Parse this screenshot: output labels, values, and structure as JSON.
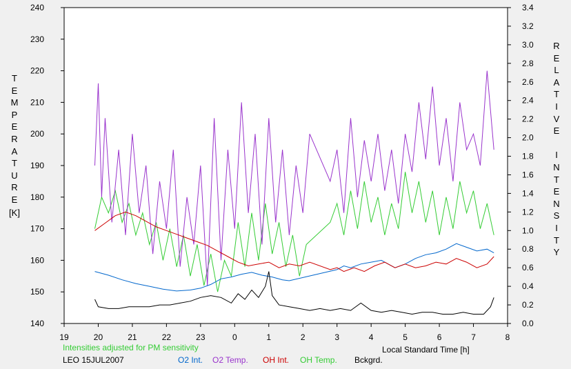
{
  "chart_data": {
    "type": "line",
    "xlabel": "Local Standard Time [h]",
    "ylabel_left": "TEMPERATURE",
    "ylabel_left_unit": "[K]",
    "ylabel_right": "RELATIVE INTENSITY",
    "x_ticks": [
      "19",
      "20",
      "21",
      "22",
      "23",
      "0",
      "1",
      "2",
      "3",
      "4",
      "5",
      "6",
      "7",
      "8"
    ],
    "x_range": [
      19,
      32
    ],
    "y_left_range": [
      140,
      240
    ],
    "y_left_ticks": [
      "140",
      "150",
      "160",
      "170",
      "180",
      "190",
      "200",
      "210",
      "220",
      "230",
      "240"
    ],
    "y_right_range": [
      0.0,
      3.4
    ],
    "y_right_ticks": [
      "0.0",
      "0.2",
      "0.4",
      "0.6",
      "0.8",
      "1.0",
      "1.2",
      "1.4",
      "1.6",
      "1.8",
      "2.0",
      "2.2",
      "2.4",
      "2.6",
      "2.8",
      "3.0",
      "3.2",
      "3.4"
    ],
    "note": "Intensities adjusted for PM sensitivity",
    "station": "LEO 15JUL2007",
    "series": [
      {
        "name": "O2 Int.",
        "color": "#0066cc",
        "axis": "right",
        "x": [
          19.9,
          20.3,
          20.7,
          21.1,
          21.5,
          21.9,
          22.3,
          22.7,
          23.0,
          23.3,
          23.6,
          23.9,
          24.2,
          24.5,
          24.8,
          25.1,
          25.4,
          25.6,
          27.0,
          27.2,
          27.4,
          27.7,
          28.0,
          28.3,
          28.5,
          28.7,
          29.0,
          29.3,
          29.6,
          29.9,
          30.2,
          30.5,
          30.8,
          31.1,
          31.4,
          31.6
        ],
        "y": [
          0.56,
          0.52,
          0.47,
          0.43,
          0.4,
          0.37,
          0.35,
          0.36,
          0.38,
          0.42,
          0.48,
          0.5,
          0.53,
          0.55,
          0.52,
          0.5,
          0.47,
          0.46,
          0.58,
          0.62,
          0.6,
          0.64,
          0.66,
          0.68,
          0.64,
          0.6,
          0.64,
          0.7,
          0.74,
          0.76,
          0.8,
          0.86,
          0.82,
          0.78,
          0.8,
          0.76
        ]
      },
      {
        "name": "O2 Temp.",
        "color": "#9933cc",
        "axis": "left",
        "x": [
          19.9,
          20.0,
          20.1,
          20.2,
          20.4,
          20.6,
          20.8,
          21.0,
          21.2,
          21.4,
          21.6,
          21.8,
          22.0,
          22.2,
          22.4,
          22.6,
          22.8,
          23.0,
          23.2,
          23.4,
          23.6,
          23.8,
          24.0,
          24.2,
          24.4,
          24.6,
          24.8,
          25.0,
          25.2,
          25.4,
          25.6,
          25.8,
          26.0,
          26.2,
          26.8,
          27.0,
          27.2,
          27.4,
          27.6,
          27.8,
          28.0,
          28.2,
          28.4,
          28.6,
          28.8,
          29.0,
          29.2,
          29.4,
          29.6,
          29.8,
          30.0,
          30.2,
          30.4,
          30.6,
          30.8,
          31.0,
          31.2,
          31.4,
          31.6
        ],
        "y": [
          190,
          216,
          180,
          205,
          172,
          195,
          168,
          200,
          175,
          190,
          162,
          185,
          170,
          195,
          158,
          180,
          165,
          190,
          152,
          205,
          160,
          195,
          170,
          210,
          175,
          200,
          165,
          205,
          172,
          195,
          168,
          190,
          175,
          200,
          185,
          195,
          175,
          205,
          180,
          198,
          185,
          200,
          182,
          195,
          178,
          200,
          188,
          210,
          192,
          215,
          190,
          205,
          185,
          210,
          195,
          200,
          190,
          220,
          195
        ]
      },
      {
        "name": "OH Int.",
        "color": "#cc0000",
        "axis": "right",
        "x": [
          19.9,
          20.2,
          20.5,
          20.8,
          21.1,
          21.4,
          21.7,
          22.0,
          22.3,
          22.6,
          22.9,
          23.2,
          23.5,
          23.8,
          24.1,
          24.4,
          24.7,
          25.0,
          25.3,
          25.6,
          25.9,
          26.2,
          26.8,
          27.0,
          27.2,
          27.5,
          27.8,
          28.1,
          28.4,
          28.7,
          29.0,
          29.3,
          29.6,
          29.9,
          30.2,
          30.5,
          30.8,
          31.1,
          31.4,
          31.6
        ],
        "y": [
          1.0,
          1.08,
          1.16,
          1.2,
          1.16,
          1.1,
          1.04,
          1.0,
          0.96,
          0.92,
          0.88,
          0.84,
          0.78,
          0.72,
          0.66,
          0.62,
          0.64,
          0.66,
          0.6,
          0.64,
          0.62,
          0.66,
          0.58,
          0.6,
          0.56,
          0.6,
          0.56,
          0.62,
          0.66,
          0.6,
          0.64,
          0.6,
          0.62,
          0.66,
          0.64,
          0.7,
          0.66,
          0.6,
          0.64,
          0.72
        ]
      },
      {
        "name": "OH Temp.",
        "color": "#33cc33",
        "axis": "left",
        "x": [
          19.9,
          20.1,
          20.3,
          20.5,
          20.7,
          20.9,
          21.1,
          21.3,
          21.5,
          21.7,
          21.9,
          22.1,
          22.3,
          22.5,
          22.7,
          22.9,
          23.1,
          23.3,
          23.5,
          23.7,
          23.9,
          24.1,
          24.3,
          24.5,
          24.7,
          24.9,
          25.1,
          25.3,
          25.5,
          25.7,
          25.9,
          26.1,
          26.8,
          27.0,
          27.2,
          27.4,
          27.6,
          27.8,
          28.0,
          28.2,
          28.4,
          28.6,
          28.8,
          29.0,
          29.2,
          29.4,
          29.6,
          29.8,
          30.0,
          30.2,
          30.4,
          30.6,
          30.8,
          31.0,
          31.2,
          31.4,
          31.6
        ],
        "y": [
          170,
          180,
          175,
          182,
          172,
          178,
          168,
          175,
          165,
          172,
          160,
          170,
          158,
          168,
          155,
          165,
          152,
          162,
          150,
          160,
          155,
          172,
          158,
          175,
          160,
          178,
          162,
          172,
          158,
          168,
          155,
          165,
          172,
          178,
          168,
          182,
          170,
          185,
          172,
          180,
          168,
          178,
          170,
          188,
          175,
          185,
          172,
          182,
          168,
          180,
          170,
          185,
          175,
          182,
          170,
          178,
          168
        ]
      },
      {
        "name": "Bckgrd.",
        "color": "#000000",
        "axis": "right",
        "x": [
          19.9,
          20.0,
          20.3,
          20.6,
          20.9,
          21.2,
          21.5,
          21.8,
          22.1,
          22.4,
          22.7,
          23.0,
          23.3,
          23.6,
          23.9,
          24.1,
          24.3,
          24.5,
          24.7,
          24.9,
          25.0,
          25.1,
          25.3,
          25.6,
          25.9,
          26.2,
          26.5,
          26.8,
          27.1,
          27.4,
          27.7,
          28.0,
          28.3,
          28.6,
          28.9,
          29.2,
          29.5,
          29.8,
          30.1,
          30.4,
          30.7,
          31.0,
          31.3,
          31.5,
          31.6
        ],
        "y": [
          0.26,
          0.18,
          0.16,
          0.16,
          0.18,
          0.18,
          0.18,
          0.2,
          0.2,
          0.22,
          0.24,
          0.28,
          0.3,
          0.28,
          0.22,
          0.32,
          0.26,
          0.36,
          0.28,
          0.4,
          0.56,
          0.3,
          0.2,
          0.18,
          0.16,
          0.14,
          0.16,
          0.14,
          0.16,
          0.14,
          0.22,
          0.14,
          0.12,
          0.14,
          0.12,
          0.1,
          0.12,
          0.12,
          0.1,
          0.1,
          0.12,
          0.1,
          0.1,
          0.18,
          0.28
        ]
      }
    ]
  }
}
